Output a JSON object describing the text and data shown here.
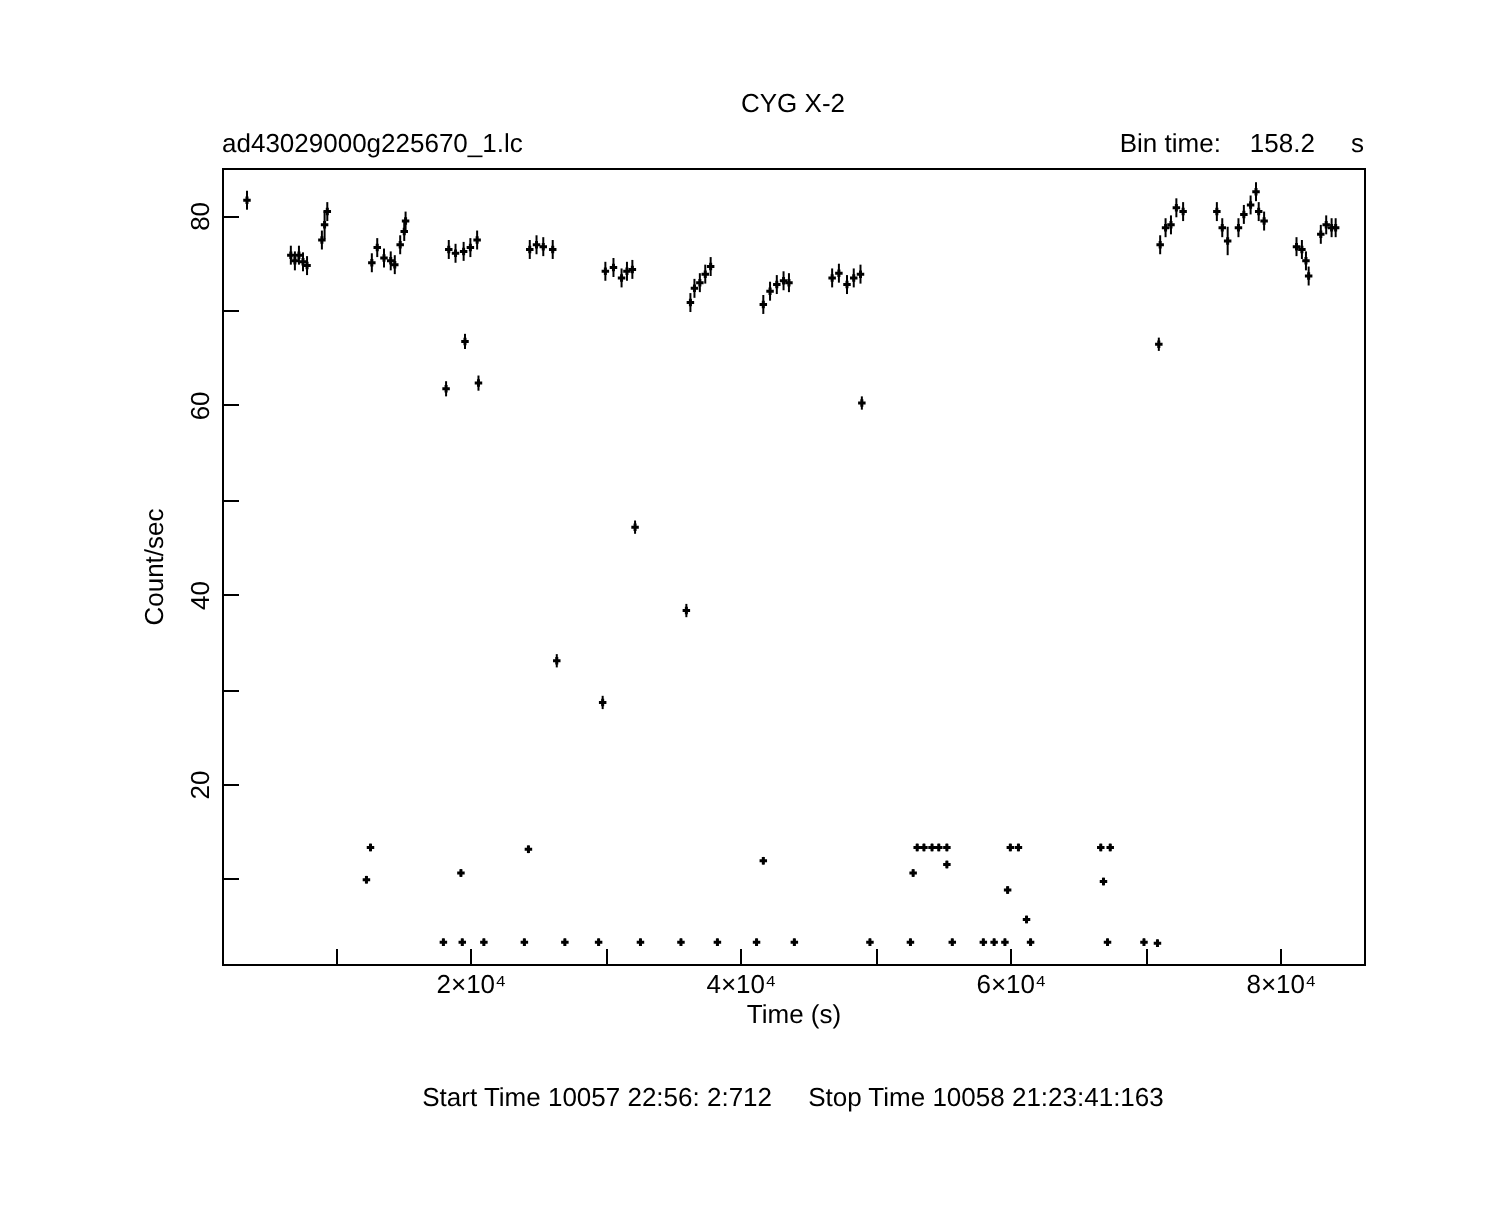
{
  "chart_data": {
    "type": "scatter",
    "title": "CYG X-2",
    "xlabel": "Time (s)",
    "ylabel": "Count/sec",
    "annotations": [
      "ad43029000g225670_1.lc",
      "Bin time:    158.2     s",
      "Start Time 10057 22:56: 2:712     Stop Time 10058 21:23:41:163"
    ],
    "xlim": [
      1600,
      86200
    ],
    "ylim": [
      1,
      85
    ],
    "xticks": [
      {
        "value": 10000,
        "label": null
      },
      {
        "value": 20000,
        "label": "2×10⁴"
      },
      {
        "value": 30000,
        "label": null
      },
      {
        "value": 40000,
        "label": "4×10⁴"
      },
      {
        "value": 50000,
        "label": null
      },
      {
        "value": 60000,
        "label": "6×10⁴"
      },
      {
        "value": 70000,
        "label": null
      },
      {
        "value": 80000,
        "label": "8×10⁴"
      }
    ],
    "yticks": [
      {
        "value": 10,
        "label": null
      },
      20,
      {
        "value": 30,
        "label": null
      },
      40,
      {
        "value": 50,
        "label": null
      },
      60,
      {
        "value": 70,
        "label": null
      },
      80
    ],
    "marker": "cross",
    "series": [
      {
        "color": "#000000",
        "x": [
          3450,
          6700,
          7000,
          7300,
          7600,
          7900,
          9000,
          9200,
          9400,
          12300,
          12600,
          12700,
          13100,
          13600,
          14100,
          14400,
          14800,
          15100,
          15200,
          18000,
          18200,
          18400,
          18900,
          19300,
          19400,
          19500,
          19600,
          20000,
          20500,
          20600,
          21000,
          24000,
          24300,
          24400,
          24900,
          25400,
          26100,
          26400,
          27000,
          29500,
          29800,
          30000,
          30600,
          31200,
          31600,
          32000,
          32200,
          32600,
          35600,
          36000,
          36300,
          36600,
          37000,
          37400,
          37800,
          38300,
          41200,
          41700,
          41700,
          42200,
          42700,
          43200,
          43600,
          44000,
          46800,
          47300,
          47900,
          48400,
          48900,
          49000,
          49600,
          52600,
          52800,
          53100,
          53600,
          54200,
          54700,
          55300,
          55300,
          55700,
          58000,
          58800,
          59600,
          59800,
          60000,
          60600,
          61200,
          61500,
          66700,
          66900,
          67200,
          67400,
          69900,
          70900,
          71000,
          71100,
          71500,
          71900,
          72300,
          72800,
          75300,
          75700,
          76100,
          76900,
          77300,
          77800,
          78200,
          78400,
          78800,
          81200,
          81600,
          81900,
          82100,
          83000,
          83400,
          83800,
          84100
        ],
        "values": [
          81.6,
          75.8,
          75.2,
          75.8,
          75.1,
          74.7,
          77.4,
          79.0,
          80.4,
          9.9,
          13.3,
          75.0,
          76.6,
          75.5,
          75.2,
          74.8,
          76.9,
          78.3,
          79.4,
          3.3,
          61.7,
          76.4,
          76.0,
          10.6,
          3.3,
          76.2,
          66.7,
          76.6,
          77.4,
          62.3,
          3.3,
          3.3,
          13.1,
          76.4,
          76.9,
          76.7,
          76.4,
          33.0,
          3.3,
          3.3,
          28.6,
          74.1,
          74.5,
          73.4,
          74.1,
          74.3,
          47.1,
          3.3,
          3.3,
          38.3,
          70.8,
          72.3,
          72.9,
          73.8,
          74.6,
          3.3,
          3.3,
          11.9,
          70.6,
          72.0,
          72.7,
          73.1,
          72.9,
          3.3,
          73.4,
          73.9,
          72.7,
          73.4,
          73.8,
          60.2,
          3.3,
          3.3,
          10.6,
          13.3,
          13.3,
          13.3,
          13.3,
          13.3,
          11.5,
          3.3,
          3.3,
          3.3,
          3.3,
          8.8,
          13.3,
          13.3,
          5.7,
          3.3,
          13.3,
          9.7,
          3.3,
          13.3,
          3.3,
          3.2,
          66.4,
          76.9,
          78.7,
          79.0,
          80.8,
          80.4,
          80.4,
          78.7,
          77.3,
          78.7,
          80.1,
          81.1,
          82.5,
          80.4,
          79.4,
          76.7,
          76.4,
          75.2,
          73.6,
          78.0,
          79.0,
          78.7,
          78.7
        ],
        "errors": [
          1,
          1,
          1,
          1,
          1,
          1,
          1,
          1.5,
          1,
          0.4,
          0.4,
          1,
          1,
          1,
          1,
          1,
          1,
          1,
          1,
          0.4,
          0.8,
          1,
          1,
          0.4,
          0.4,
          1,
          0.8,
          1,
          1,
          0.8,
          0.4,
          0.4,
          0.4,
          1,
          1,
          1,
          1,
          0.7,
          0.4,
          0.4,
          0.7,
          1,
          1,
          1,
          1,
          1,
          0.7,
          0.4,
          0.4,
          0.7,
          1,
          1,
          1,
          1,
          1,
          0.4,
          0.4,
          0.4,
          1,
          1,
          1,
          1,
          1,
          0.4,
          1,
          1,
          1,
          1,
          1,
          0.7,
          0.4,
          0.4,
          0.4,
          0.4,
          0.4,
          0.4,
          0.4,
          0.4,
          0.4,
          0.4,
          0.4,
          0.4,
          0.4,
          0.4,
          0.4,
          0.4,
          0.4,
          0.4,
          0.4,
          0.4,
          0.4,
          0.4,
          0.4,
          0.4,
          0.7,
          1,
          1,
          1,
          1,
          1,
          1,
          1,
          1.5,
          1,
          1,
          1,
          1,
          1,
          1,
          1,
          1,
          1,
          1,
          1,
          1,
          1,
          1
        ]
      }
    ]
  }
}
